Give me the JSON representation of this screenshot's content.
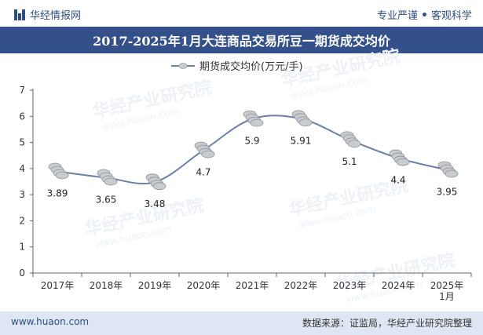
{
  "header": {
    "brand": "华经情报网",
    "slogan_left": "专业严谨",
    "slogan_right": "客观科学"
  },
  "title": "2017-2025年1月大连商品交易所豆一期货成交均价",
  "footer": {
    "website": "www.huaon.com",
    "source": "数据来源：证监局，华经产业研究院整理"
  },
  "watermark": "华经产业研究院",
  "watermark_url": "www.huaon.com",
  "colors": {
    "line": "#6b7faa",
    "title_bg": "#34508a",
    "coin": "#c9cccf"
  },
  "chart_data": {
    "type": "line",
    "title": "2017-2025年1月大连商品交易所豆一期货成交均价",
    "legend": "期货成交均价(万元/手)",
    "legend_position": "top-center",
    "categories": [
      "2017年",
      "2018年",
      "2019年",
      "2020年",
      "2021年",
      "2022年",
      "2023年",
      "2024年",
      "2025年\n1月"
    ],
    "series": [
      {
        "name": "期货成交均价(万元/手)",
        "values": [
          3.89,
          3.65,
          3.48,
          4.7,
          5.9,
          5.91,
          5.1,
          4.4,
          3.95
        ]
      }
    ],
    "labels": [
      "3.89",
      "3.65",
      "3.48",
      "4.7",
      "5.9",
      "5.91",
      "5.1",
      "4.4",
      "3.95"
    ],
    "ylim": [
      0,
      7
    ],
    "yticks": [
      0,
      1,
      2,
      3,
      4,
      5,
      6,
      7
    ],
    "xlabel": "",
    "ylabel": "",
    "grid": false,
    "marker": "coin-stack"
  }
}
